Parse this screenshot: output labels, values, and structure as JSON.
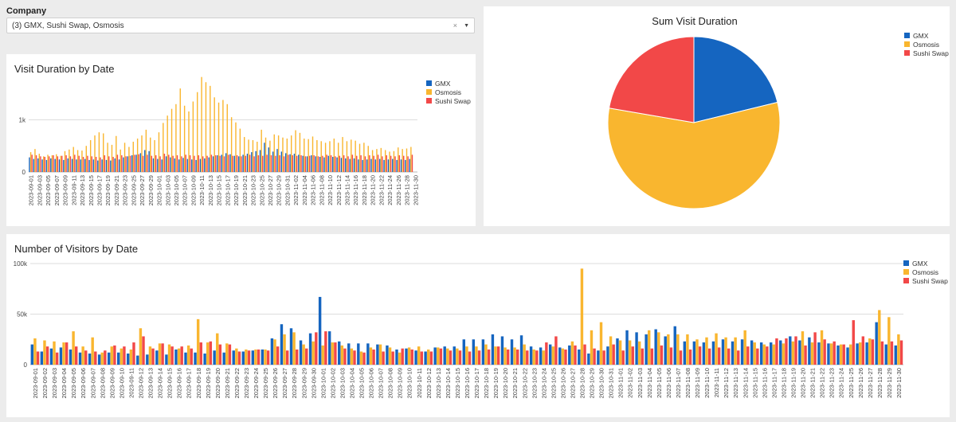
{
  "filter": {
    "label": "Company",
    "value": "(3) GMX, Sushi Swap, Osmosis",
    "clear_icon": "×",
    "dropdown_icon": "▼"
  },
  "colors": {
    "GMX": "#1565c0",
    "Osmosis": "#f9b62f",
    "Sushi Swap": "#f24848",
    "grid": "#dddddd",
    "axis_text": "#444444"
  },
  "charts": {
    "duration": {
      "title": "Visit Duration by Date",
      "legend": [
        "GMX",
        "Osmosis",
        "Sushi Swap"
      ]
    },
    "pie": {
      "title": "Sum Visit Duration",
      "legend": [
        "GMX",
        "Osmosis",
        "Sushi Swap"
      ]
    },
    "visitors": {
      "title": "Number of Visitors by Date",
      "legend": [
        "GMX",
        "Osmosis",
        "Sushi Swap"
      ]
    }
  },
  "chart_data": [
    {
      "type": "bar",
      "title": "Visit Duration by Date",
      "x_start": "2023-09-01",
      "x_end": "2023-11-30",
      "y_ticks": [
        "0",
        "1k"
      ],
      "ylim": [
        0,
        1800
      ],
      "series_names": [
        "GMX",
        "Osmosis",
        "Sushi Swap"
      ],
      "series": [
        {
          "name": "GMX",
          "values": [
            280,
            250,
            260,
            240,
            230,
            260,
            250,
            240,
            230,
            260,
            250,
            240,
            240,
            250,
            230,
            240,
            220,
            240,
            230,
            220,
            260,
            240,
            280,
            300,
            320,
            330,
            360,
            420,
            400,
            260,
            250,
            240,
            300,
            280,
            260,
            240,
            270,
            250,
            240,
            230,
            250,
            260,
            280,
            300,
            320,
            330,
            360,
            340,
            310,
            300,
            330,
            350,
            380,
            400,
            420,
            560,
            470,
            390,
            440,
            390,
            360,
            340,
            350,
            330,
            310,
            300,
            320,
            300,
            290,
            280,
            310,
            290,
            280,
            270,
            260,
            250,
            260,
            240,
            230,
            240,
            250,
            240,
            250,
            230,
            240,
            250,
            230,
            240,
            230,
            250
          ]
        },
        {
          "name": "Osmosis",
          "values": [
            380,
            440,
            350,
            300,
            330,
            320,
            340,
            310,
            400,
            430,
            480,
            420,
            410,
            500,
            610,
            700,
            760,
            740,
            560,
            520,
            690,
            430,
            560,
            480,
            580,
            640,
            700,
            810,
            660,
            610,
            760,
            940,
            1080,
            1210,
            1300,
            1600,
            1270,
            1160,
            1350,
            1530,
            1820,
            1720,
            1650,
            1430,
            1330,
            1380,
            1300,
            1050,
            950,
            830,
            670,
            620,
            610,
            580,
            810,
            660,
            600,
            720,
            700,
            660,
            640,
            700,
            800,
            750,
            640,
            630,
            680,
            610,
            590,
            560,
            590,
            640,
            560,
            670,
            590,
            620,
            600,
            540,
            560,
            500,
            420,
            440,
            460,
            420,
            390,
            400,
            470,
            440,
            450,
            480
          ]
        },
        {
          "name": "Sushi Swap",
          "values": [
            330,
            320,
            300,
            290,
            300,
            320,
            300,
            310,
            320,
            300,
            330,
            310,
            290,
            310,
            300,
            290,
            280,
            320,
            300,
            290,
            330,
            320,
            300,
            310,
            330,
            340,
            310,
            330,
            310,
            320,
            300,
            350,
            330,
            310,
            320,
            300,
            330,
            320,
            310,
            320,
            300,
            310,
            330,
            320,
            310,
            300,
            330,
            310,
            320,
            300,
            310,
            330,
            300,
            320,
            310,
            330,
            320,
            310,
            320,
            300,
            330,
            320,
            310,
            320,
            300,
            310,
            320,
            300,
            310,
            330,
            320,
            300,
            310,
            320,
            300,
            330,
            310,
            320,
            300,
            320,
            310,
            330,
            300,
            320,
            310,
            300,
            320,
            310,
            300,
            330
          ]
        }
      ],
      "tick_step": 2
    },
    {
      "type": "pie",
      "title": "Sum Visit Duration",
      "labels": [
        "GMX",
        "Osmosis",
        "Sushi Swap"
      ],
      "values": [
        21.2,
        56.5,
        22.3
      ]
    },
    {
      "type": "bar",
      "title": "Number of Visitors by Date",
      "x_start": "2023-09-01",
      "x_end": "2023-11-30",
      "y_ticks": [
        "0",
        "50k",
        "100k"
      ],
      "ylim": [
        0,
        100000
      ],
      "series_names": [
        "GMX",
        "Osmosis",
        "Sushi Swap"
      ],
      "series": [
        {
          "name": "GMX",
          "values": [
            20000,
            13000,
            16000,
            17000,
            15000,
            12000,
            11000,
            10000,
            12000,
            12000,
            11000,
            9000,
            10000,
            14000,
            10000,
            15000,
            12000,
            12000,
            11000,
            14000,
            12000,
            14000,
            13000,
            14000,
            15000,
            26000,
            40000,
            36000,
            24000,
            31000,
            67000,
            33000,
            23000,
            21000,
            21000,
            21000,
            20000,
            19000,
            15000,
            16000,
            14000,
            13000,
            17000,
            18000,
            18000,
            25000,
            25000,
            25000,
            30000,
            28000,
            25000,
            29000,
            18000,
            17000,
            20000,
            17000,
            19000,
            15000,
            11000,
            14000,
            18000,
            26000,
            34000,
            32000,
            30000,
            35000,
            28000,
            38000,
            23000,
            23000,
            22000,
            23000,
            25000,
            23000,
            25000,
            24000,
            22000,
            22000,
            24000,
            28000,
            24000,
            27000,
            22000,
            21000,
            19000,
            17000,
            21000,
            22000,
            42000,
            20000,
            19000
          ]
        },
        {
          "name": "Osmosis",
          "values": [
            26000,
            24000,
            23000,
            22000,
            33000,
            18000,
            27000,
            12000,
            18000,
            16000,
            15000,
            36000,
            18000,
            21000,
            20000,
            16000,
            19000,
            45000,
            22000,
            31000,
            21000,
            16000,
            15000,
            15000,
            15000,
            25000,
            30000,
            32000,
            20000,
            23000,
            19000,
            22000,
            19000,
            16000,
            13000,
            17000,
            20000,
            17000,
            12000,
            17000,
            18000,
            15000,
            17000,
            16000,
            16000,
            18000,
            18000,
            20000,
            18000,
            17000,
            17000,
            20000,
            15000,
            14000,
            18000,
            16000,
            23000,
            95000,
            34000,
            42000,
            28000,
            24000,
            24000,
            23000,
            34000,
            32000,
            30000,
            30000,
            30000,
            25000,
            27000,
            31000,
            27000,
            27000,
            34000,
            22000,
            20000,
            20000,
            21000,
            23000,
            33000,
            22000,
            34000,
            21000,
            20000,
            20000,
            22000,
            26000,
            54000,
            47000,
            30000
          ]
        },
        {
          "name": "Sushi Swap",
          "values": [
            13000,
            18000,
            12000,
            22000,
            18000,
            14000,
            13000,
            14000,
            19000,
            18000,
            22000,
            28000,
            16000,
            21000,
            18000,
            18000,
            16000,
            22000,
            23000,
            20000,
            20000,
            13000,
            14000,
            15000,
            14000,
            18000,
            14000,
            15000,
            16000,
            32000,
            33000,
            22000,
            16000,
            14000,
            12000,
            15000,
            13000,
            13000,
            16000,
            15000,
            13000,
            13000,
            16000,
            14000,
            14000,
            13000,
            14000,
            15000,
            18000,
            15000,
            15000,
            14000,
            14000,
            22000,
            28000,
            15000,
            19000,
            20000,
            16000,
            14000,
            20000,
            14000,
            18000,
            16000,
            16000,
            19000,
            17000,
            14000,
            15000,
            18000,
            16000,
            17000,
            16000,
            14000,
            18000,
            16000,
            18000,
            26000,
            26000,
            28000,
            19000,
            32000,
            25000,
            23000,
            20000,
            44000,
            28000,
            25000,
            23000,
            23000,
            24000
          ]
        }
      ],
      "tick_step": 1
    }
  ]
}
